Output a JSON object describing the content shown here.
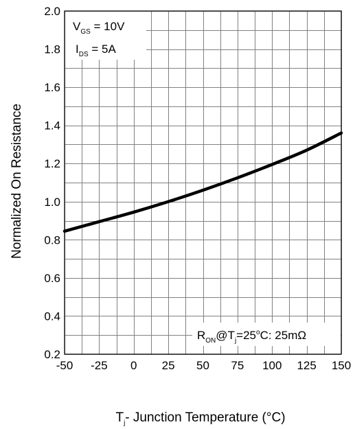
{
  "chart_data": {
    "type": "line",
    "xlabel": {
      "main": "T",
      "sub": "j",
      "rest": "- Junction Temperature (°C)"
    },
    "ylabel": "Normalized On Resistance",
    "xlim": [
      -50,
      150
    ],
    "ylim": [
      0.2,
      2.0
    ],
    "x_ticks": [
      "-50",
      "-25",
      "0",
      "25",
      "50",
      "75",
      "100",
      "125",
      "150"
    ],
    "y_ticks": [
      "0.2",
      "0.4",
      "0.6",
      "0.8",
      "1.0",
      "1.2",
      "1.4",
      "1.6",
      "1.8",
      "2.0"
    ],
    "grid": true,
    "series": [
      {
        "x": [
          -50,
          -25,
          0,
          25,
          50,
          75,
          100,
          125,
          150
        ],
        "y": [
          0.845,
          0.895,
          0.945,
          1.0,
          1.06,
          1.125,
          1.195,
          1.27,
          1.36
        ]
      }
    ],
    "conditions": [
      {
        "main": "V",
        "sub": "GS",
        "rest": " = 10V"
      },
      {
        "main": "I",
        "sub": "DS",
        "rest": " = 5A"
      }
    ],
    "note": {
      "r": "R",
      "r_sub": "ON",
      "at": "@T",
      "t_sub": "j",
      "eq": "=25",
      "deg": "o",
      "rest": "C: 25mΩ"
    }
  }
}
